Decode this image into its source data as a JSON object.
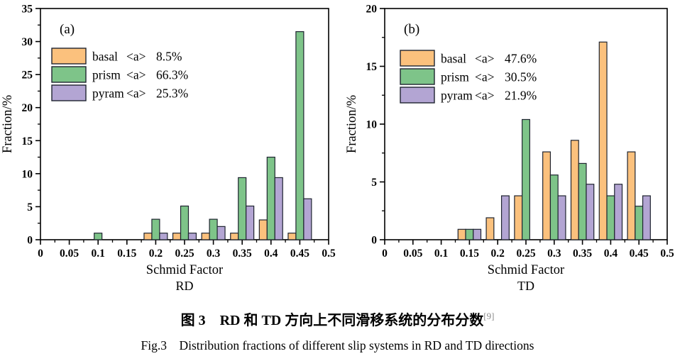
{
  "figure": {
    "caption_line1": "图 3　RD 和 TD 方向上不同滑移系统的分布分数",
    "caption_ref": "[9]",
    "caption_line2": "Fig.3　Distribution fractions of different slip systems in RD and TD directions"
  },
  "colors": {
    "basal": "#FBC17D",
    "prism": "#7EC489",
    "pyram": "#B3A5D3",
    "bar_border": "#1F2430",
    "axis": "#000000",
    "ref_gray": "#8A8A8A"
  },
  "chart_data": [
    {
      "type": "bar",
      "panel_label": "(a)",
      "direction": "RD",
      "xlabel": "Schmid Factor",
      "ylabel": "Fraction/%",
      "xlim": [
        0,
        0.5
      ],
      "ylim": [
        0,
        35
      ],
      "xticks": [
        "0",
        "0.05",
        "0.1",
        "0.15",
        "0.2",
        "0.25",
        "0.3",
        "0.35",
        "0.4",
        "0.45",
        "0.5"
      ],
      "yticks": [
        0,
        5,
        10,
        15,
        20,
        25,
        30,
        35
      ],
      "grid": false,
      "legend_position": "upper-left",
      "categories": [
        0.1,
        0.2,
        0.25,
        0.3,
        0.35,
        0.4,
        0.45
      ],
      "series": [
        {
          "name": "basal",
          "bracket": "<a>",
          "percent": "8.5%",
          "color_key": "basal",
          "values": [
            0,
            1.0,
            1.0,
            1.0,
            1.0,
            3.0,
            1.0
          ]
        },
        {
          "name": "prism",
          "bracket": "<a>",
          "percent": "66.3%",
          "color_key": "prism",
          "values": [
            1.0,
            3.1,
            5.1,
            3.1,
            9.4,
            12.5,
            31.5
          ]
        },
        {
          "name": "pyram",
          "bracket": "<a>",
          "percent": "25.3%",
          "color_key": "pyram",
          "values": [
            0,
            1.0,
            1.0,
            2.0,
            5.1,
            9.4,
            6.2
          ]
        }
      ]
    },
    {
      "type": "bar",
      "panel_label": "(b)",
      "direction": "TD",
      "xlabel": "Schmid Factor",
      "ylabel": "Fraction/%",
      "xlim": [
        0,
        0.5
      ],
      "ylim": [
        0,
        20
      ],
      "xticks": [
        "0",
        "0.05",
        "0.1",
        "0.15",
        "0.2",
        "0.25",
        "0.3",
        "0.35",
        "0.4",
        "0.45",
        "0.5"
      ],
      "yticks": [
        0,
        5,
        10,
        15,
        20
      ],
      "grid": false,
      "legend_position": "upper-left",
      "categories": [
        0.15,
        0.2,
        0.25,
        0.3,
        0.35,
        0.4,
        0.45
      ],
      "series": [
        {
          "name": "basal",
          "bracket": "<a>",
          "percent": "47.6%",
          "color_key": "basal",
          "values": [
            0.9,
            1.9,
            3.8,
            7.6,
            8.6,
            17.1,
            7.6
          ]
        },
        {
          "name": "prism",
          "bracket": "<a>",
          "percent": "30.5%",
          "color_key": "prism",
          "values": [
            0.9,
            0,
            10.4,
            5.6,
            6.6,
            3.8,
            2.9
          ]
        },
        {
          "name": "pyram",
          "bracket": "<a>",
          "percent": "21.9%",
          "color_key": "pyram",
          "values": [
            0.9,
            3.8,
            0,
            3.8,
            4.8,
            4.8,
            3.8
          ]
        }
      ]
    }
  ]
}
